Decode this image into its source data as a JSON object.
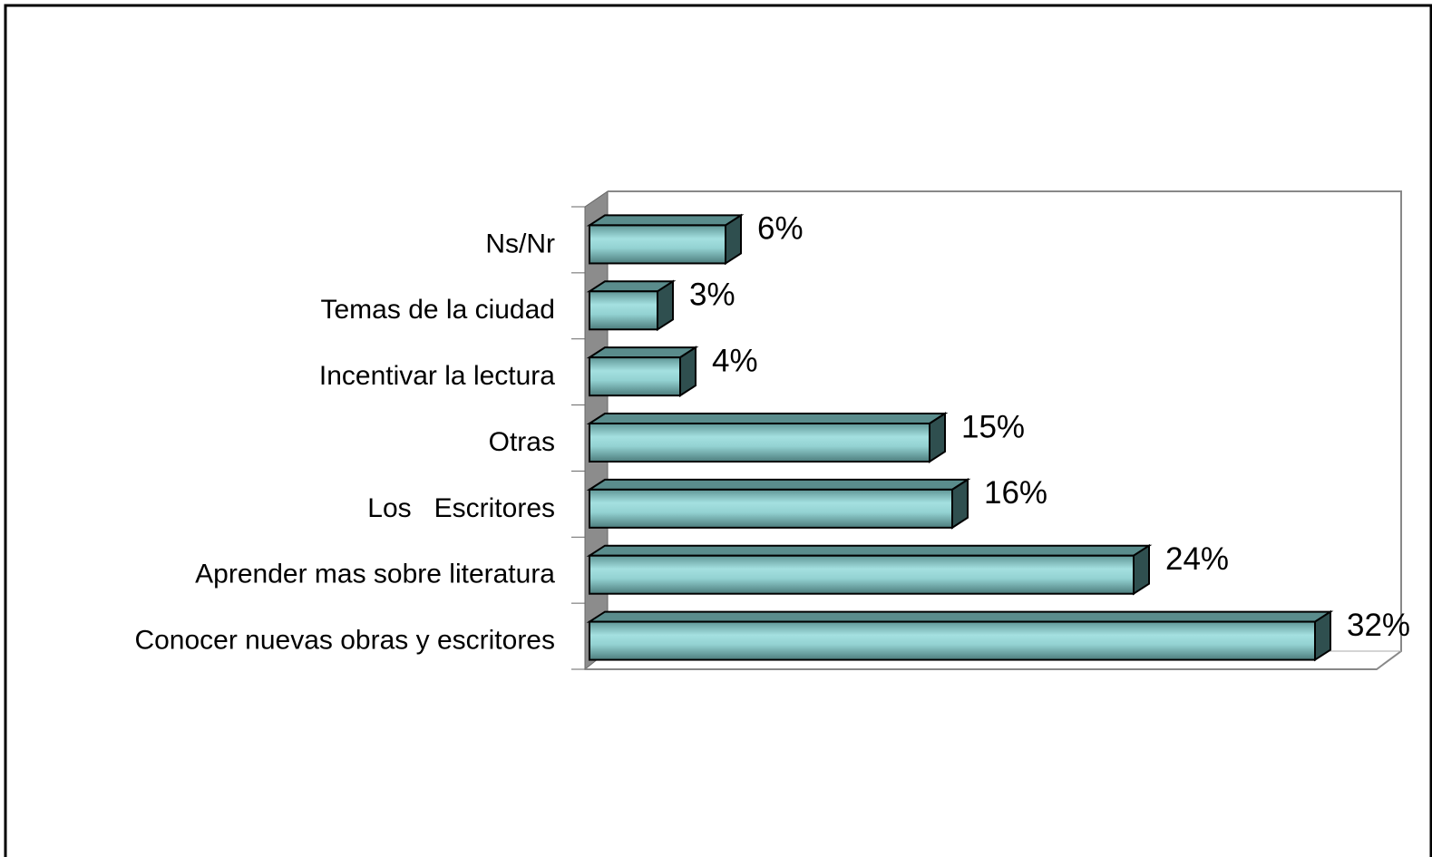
{
  "chart_data": {
    "type": "bar",
    "orientation": "horizontal",
    "categories": [
      "Conocer nuevas obras y escritores",
      "Aprender mas sobre literatura",
      "Los   Escritores",
      "Otras",
      "Incentivar la lectura",
      "Temas de la ciudad",
      "Ns/Nr"
    ],
    "values": [
      32,
      24,
      16,
      15,
      4,
      3,
      6
    ],
    "value_labels": [
      "32%",
      "24%",
      "16%",
      "15%",
      "4%",
      "3%",
      "6%"
    ],
    "color": "#8fd0d0"
  }
}
